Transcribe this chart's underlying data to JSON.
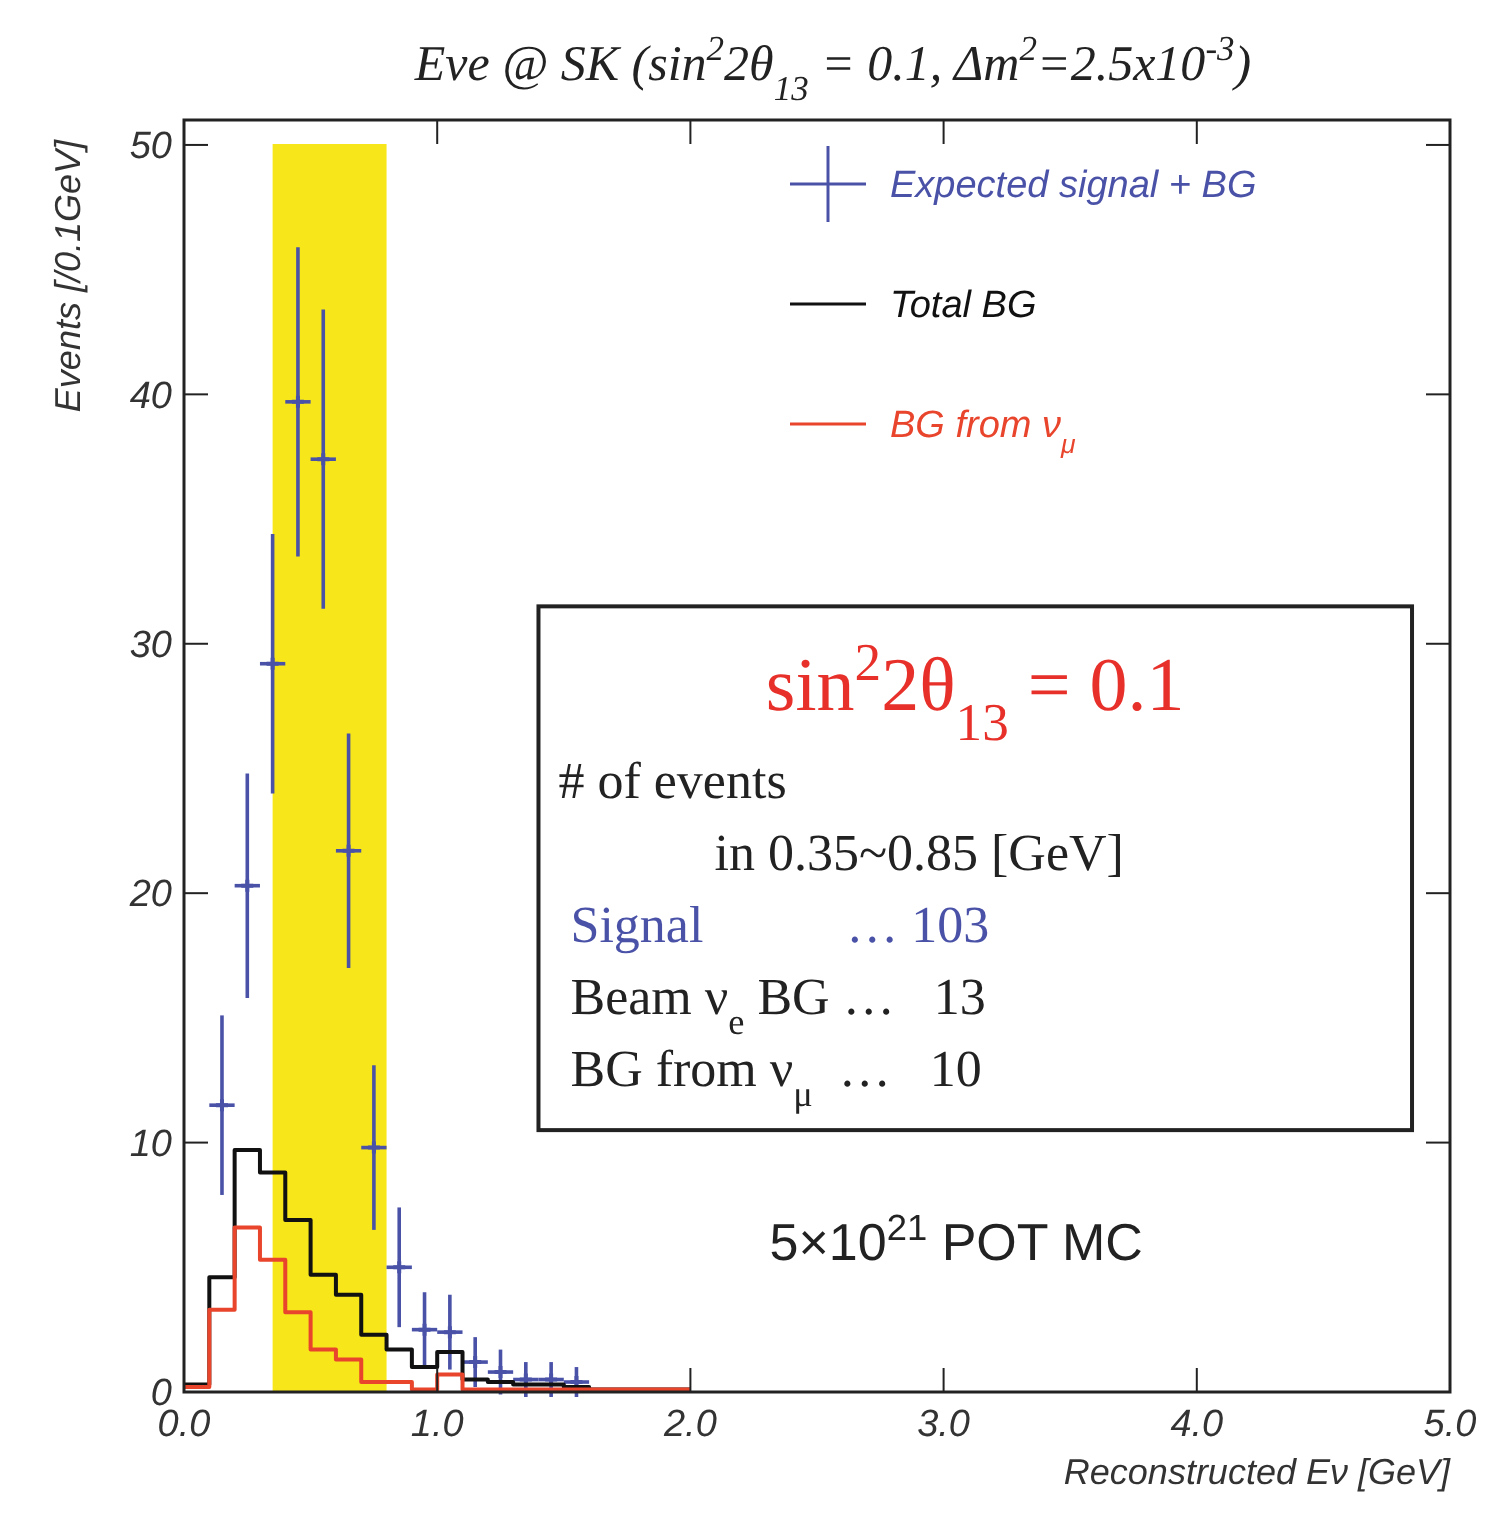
{
  "chart_data": {
    "type": "histogram",
    "title": "Eνe @ SK (sin$^{2}$2θ$_{13}$ = 0.1, Δm$^{2}$=2.5x10$^{-3}$)",
    "xlabel": "Reconstructed Eν [GeV]",
    "ylabel": "Events [/0.1GeV]",
    "bins": [
      0.0,
      0.1,
      0.2,
      0.3,
      0.4,
      0.5,
      0.6,
      0.7,
      0.8,
      0.9,
      1.0,
      1.1,
      1.2,
      1.3,
      1.4,
      1.5,
      1.6,
      1.7,
      1.8,
      1.9,
      2.0
    ],
    "series": [
      {
        "name": "Expected signal + BG",
        "type": "scatter",
        "color": "#4a52a8",
        "x": [
          0.15,
          0.25,
          0.35,
          0.45,
          0.55,
          0.65,
          0.75,
          0.85,
          0.95,
          1.05,
          1.15,
          1.25,
          1.35,
          1.45,
          1.55
        ],
        "values": [
          11.5,
          20.3,
          29.2,
          39.7,
          37.4,
          21.7,
          9.8,
          5.0,
          2.5,
          2.4,
          1.2,
          0.8,
          0.5,
          0.5,
          0.4
        ],
        "errors": [
          3.6,
          4.5,
          5.2,
          6.2,
          6.0,
          4.7,
          3.3,
          2.4,
          1.5,
          1.5,
          1.0,
          0.9,
          0.7,
          0.7,
          0.6
        ],
        "xerrors": [
          0.05,
          0.05,
          0.05,
          0.05,
          0.05,
          0.05,
          0.05,
          0.05,
          0.05,
          0.05,
          0.05,
          0.05,
          0.05,
          0.05,
          0.05
        ]
      },
      {
        "name": "Total BG",
        "color": "#111111",
        "values": [
          0.3,
          4.6,
          9.7,
          8.8,
          6.9,
          4.7,
          3.9,
          2.3,
          1.7,
          1.0,
          1.6,
          0.5,
          0.4,
          0.3,
          0.3,
          0.2,
          0.1,
          0.1,
          0.1,
          0.1
        ]
      },
      {
        "name": "BG from ν$_{μ}$",
        "color": "#e8452c",
        "values": [
          0.2,
          3.3,
          6.6,
          5.3,
          3.2,
          1.7,
          1.3,
          0.4,
          0.4,
          0.1,
          0.7,
          0.1,
          0.1,
          0.1,
          0.1,
          0.1,
          0.1,
          0.1,
          0.1,
          0.1
        ]
      }
    ],
    "xlim": [
      0,
      5
    ],
    "ylim": [
      0,
      51
    ],
    "xticks": [
      {
        "value": 0,
        "label": "0.0"
      },
      {
        "value": 1,
        "label": "1.0"
      },
      {
        "value": 2,
        "label": "2.0"
      },
      {
        "value": 3,
        "label": "3.0"
      },
      {
        "value": 4,
        "label": "4.0"
      },
      {
        "value": 5,
        "label": "5.0"
      }
    ],
    "yticks": [
      0,
      10,
      20,
      30,
      40,
      50
    ],
    "bands": [
      {
        "axis": "x",
        "from": 0.35,
        "to": 0.8,
        "color": "#f6e61a"
      }
    ],
    "legend": "top right",
    "marker": "cross",
    "annotations": [
      "sin$^{2}$2θ$_{13}$ = 0.1",
      "# of events",
      "in 0.35~0.85 [GeV]",
      "Signal           … 103",
      "Beam ν$_{e}$ BG …   13",
      "BG from ν$_{μ}$  …   10",
      "5×10$^{21}$ POT MC"
    ]
  }
}
